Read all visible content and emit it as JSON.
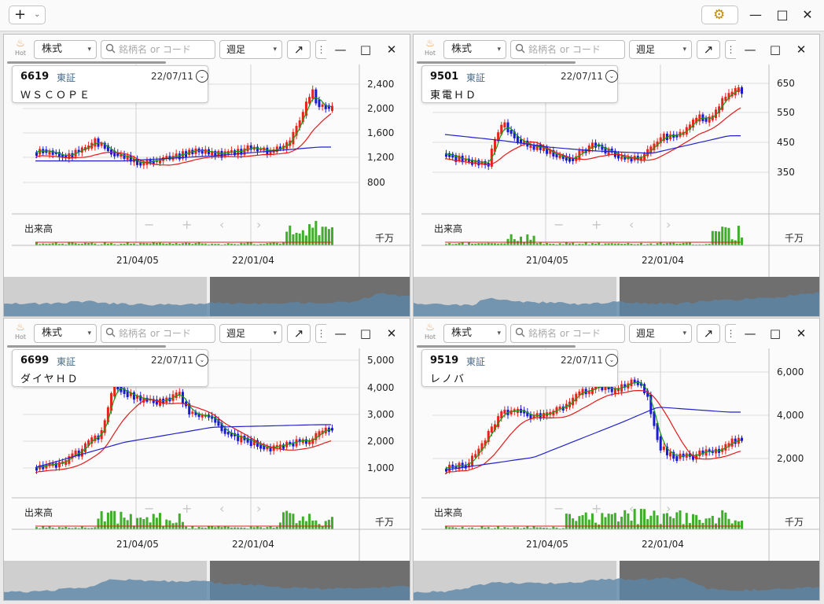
{
  "toolbar": {
    "add_icon": "plus-icon",
    "settings_icon": "gear-icon",
    "minimize": "—",
    "maximize": "□",
    "close": "✕"
  },
  "panel_common": {
    "hot_label": "Hot",
    "market_select": "株式",
    "search_placeholder": "銘柄名 or コード",
    "period_select": "週足",
    "volume_label": "出来高",
    "volume_unit": "千万",
    "x_labels": [
      "21/04/05",
      "22/01/04"
    ]
  },
  "panels": [
    {
      "code": "6619",
      "exchange": "東証",
      "date": "22/07/11",
      "name": "ＷＳＣＯＰＥ",
      "y_ticks": [
        "2,400",
        "2,000",
        "1,600",
        "1,200",
        "800"
      ],
      "y_values": [
        2400,
        2000,
        1600,
        1200,
        800
      ]
    },
    {
      "code": "9501",
      "exchange": "東証",
      "date": "22/07/11",
      "name": "東電ＨＤ",
      "y_ticks": [
        "650",
        "550",
        "450",
        "350"
      ],
      "y_values": [
        650,
        550,
        450,
        350
      ]
    },
    {
      "code": "6699",
      "exchange": "東証",
      "date": "22/07/11",
      "name": "ダイヤＨＤ",
      "y_ticks": [
        "5,000",
        "4,000",
        "3,000",
        "2,000",
        "1,000"
      ],
      "y_values": [
        5000,
        4000,
        3000,
        2000,
        1000
      ]
    },
    {
      "code": "9519",
      "exchange": "東証",
      "date": "22/07/11",
      "name": "レノバ",
      "y_ticks": [
        "6,000",
        "4,000",
        "2,000"
      ],
      "y_values": [
        6000,
        4000,
        2000
      ]
    }
  ],
  "colors": {
    "up": "#e8231b",
    "down": "#1a1ad6",
    "ma_short": "#1a9a1a",
    "ma_mid": "#e31a1a",
    "ma_long": "#2222cc",
    "volume": "#3fae2a",
    "nav_fill": "#5b86a8"
  }
}
